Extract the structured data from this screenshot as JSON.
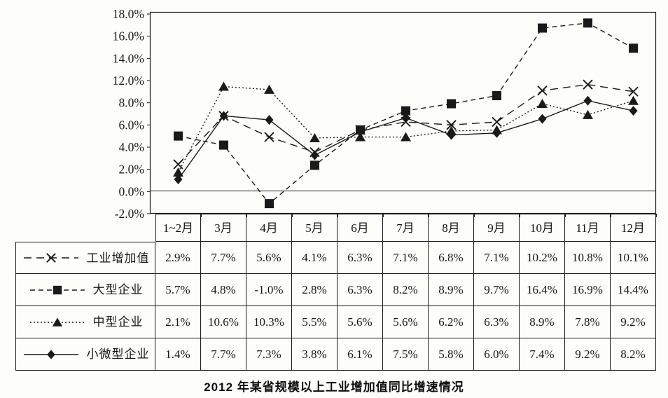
{
  "chart_data": {
    "type": "line",
    "title": "2012 年某省规模以上工业增加值同比增速情况",
    "categories": [
      "1~2月",
      "3月",
      "4月",
      "5月",
      "6月",
      "7月",
      "8月",
      "9月",
      "10月",
      "11月",
      "12月"
    ],
    "series": [
      {
        "name": "工业增加值",
        "marker": "cross",
        "line_style": "long-dash",
        "values": [
          2.9,
          7.7,
          5.6,
          4.1,
          6.3,
          7.1,
          6.8,
          7.1,
          10.2,
          10.8,
          10.1
        ]
      },
      {
        "name": "大型企业",
        "marker": "square",
        "line_style": "dash",
        "values": [
          5.7,
          4.8,
          -1.0,
          2.8,
          6.3,
          8.2,
          8.9,
          9.7,
          16.4,
          16.9,
          14.4
        ]
      },
      {
        "name": "中型企业",
        "marker": "triangle",
        "line_style": "dotted",
        "values": [
          2.1,
          10.6,
          10.3,
          5.5,
          5.6,
          5.6,
          6.2,
          6.3,
          8.9,
          7.8,
          9.2
        ]
      },
      {
        "name": "小微型企业",
        "marker": "diamond",
        "line_style": "solid",
        "values": [
          1.4,
          7.7,
          7.3,
          3.8,
          6.1,
          7.5,
          5.8,
          6.0,
          7.4,
          9.2,
          8.2
        ]
      }
    ],
    "y_axis": {
      "labels": [
        "18.0%",
        "16.0%",
        "14.0%",
        "12.0%",
        "8.0%",
        "6.0%",
        "4.0%",
        "2.0%",
        "0.0%",
        "-2.0%"
      ],
      "range": [
        -2,
        18
      ]
    },
    "value_suffix": "%",
    "grid": "zero-line-only",
    "legend_position": "table-rows-left",
    "ink_color": "#1a1a1a"
  }
}
